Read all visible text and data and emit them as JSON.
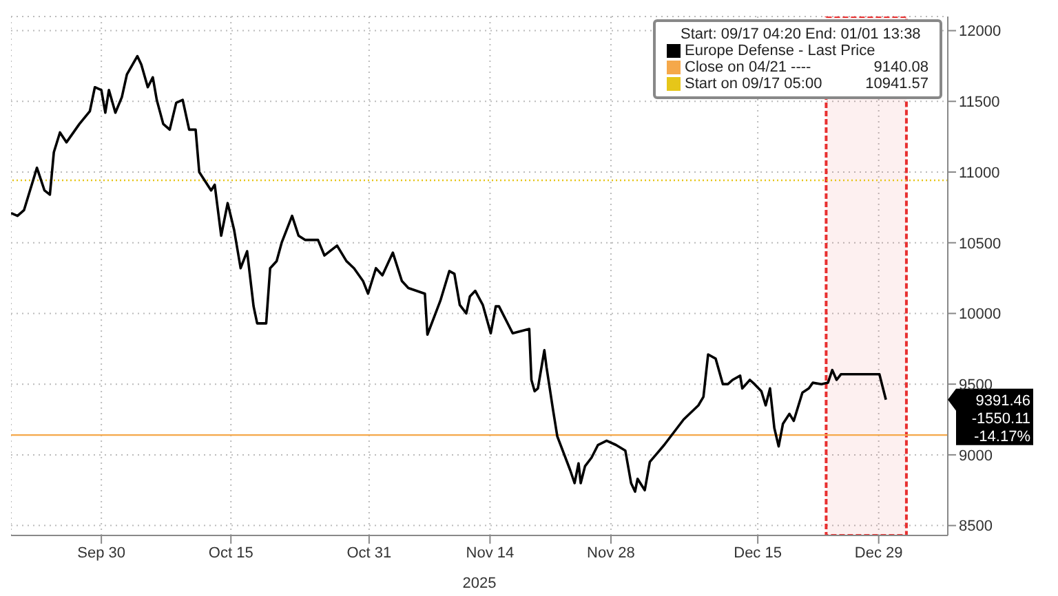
{
  "chart_data": {
    "type": "line",
    "xlabel": "2025",
    "legend_title": "Start: 09/17 04:20 End: 01/01 13:38",
    "legend": "top right",
    "grid": true,
    "marker": "none",
    "xlim": [
      "2025-09-19T13:00",
      "2026-01-06T00:00"
    ],
    "xticks": [
      {
        "value": "2025-09-30",
        "label": "Sep 30"
      },
      {
        "value": "2025-10-15",
        "label": "Oct 15"
      },
      {
        "value": "2025-10-31",
        "label": "Oct 31"
      },
      {
        "value": "2025-11-14",
        "label": "Nov 14"
      },
      {
        "value": "2025-11-28",
        "label": "Nov 28"
      },
      {
        "value": "2025-12-15",
        "label": "Dec 15"
      },
      {
        "value": "2025-12-29",
        "label": "Dec 29"
      }
    ],
    "ylim": [
      8430,
      12100
    ],
    "yticks": [
      8500,
      9000,
      9500,
      10000,
      10500,
      11000,
      11500,
      12000
    ],
    "series": [
      {
        "name": "Europe Defense - Last Price",
        "color": "#000000",
        "line_style": "solid",
        "x": [
          "2025-09-19T13:00",
          "2025-09-20T07:00",
          "2025-09-21T01:00",
          "2025-09-22T13:00",
          "2025-09-23T10:00",
          "2025-09-24T01:00",
          "2025-09-24T12:00",
          "2025-09-25T05:00",
          "2025-09-25T23:00",
          "2025-09-27T11:00",
          "2025-09-28T16:00",
          "2025-09-29T06:00",
          "2025-09-30T00:00",
          "2025-09-30T11:00",
          "2025-09-30T21:00",
          "2025-10-01T15:00",
          "2025-10-02T09:00",
          "2025-10-02T23:00",
          "2025-10-04T04:00",
          "2025-10-04T15:00",
          "2025-10-05T09:00",
          "2025-10-05T23:00",
          "2025-10-06T10:00",
          "2025-10-07T04:00",
          "2025-10-07T22:00",
          "2025-10-08T16:00",
          "2025-10-09T10:00",
          "2025-10-10T04:00",
          "2025-10-10T22:00",
          "2025-10-11T08:00",
          "2025-10-12T17:00",
          "2025-10-13T03:00",
          "2025-10-13T21:00",
          "2025-10-14T15:00",
          "2025-10-15T09:00",
          "2025-10-16T03:00",
          "2025-10-16T21:00",
          "2025-10-17T15:00",
          "2025-10-18T01:00",
          "2025-10-19T02:00",
          "2025-10-19T13:00",
          "2025-10-20T07:00",
          "2025-10-20T21:00",
          "2025-10-22T02:00",
          "2025-10-22T20:00",
          "2025-10-23T14:00",
          "2025-10-25T02:00",
          "2025-10-25T20:00",
          "2025-10-27T07:00",
          "2025-10-28T09:00",
          "2025-10-29T06:00",
          "2025-10-30T07:00",
          "2025-10-30T21:00",
          "2025-10-31T19:00",
          "2025-11-01T13:00",
          "2025-11-02T18:00",
          "2025-11-03T19:00",
          "2025-11-04T13:00",
          "2025-11-06T11:00",
          "2025-11-06T18:00",
          "2025-11-07T12:00",
          "2025-11-08T06:00",
          "2025-11-09T07:00",
          "2025-11-09T21:00",
          "2025-11-10T12:00",
          "2025-11-11T06:00",
          "2025-11-11T16:00",
          "2025-11-12T07:00",
          "2025-11-13T04:00",
          "2025-11-14T02:00",
          "2025-11-14T16:00",
          "2025-11-15T01:00",
          "2025-11-16T15:00",
          "2025-11-18T13:00",
          "2025-11-18T19:00",
          "2025-11-19T04:00",
          "2025-11-19T13:00",
          "2025-11-20T07:00",
          "2025-11-20T13:00",
          "2025-11-21T07:00",
          "2025-11-21T19:00",
          "2025-11-23T07:00",
          "2025-11-23T19:00",
          "2025-11-24T06:00",
          "2025-11-24T12:00",
          "2025-11-25T00:00",
          "2025-11-25T18:00",
          "2025-11-26T12:00",
          "2025-11-27T12:00",
          "2025-11-28T14:00",
          "2025-11-29T16:00",
          "2025-11-30T08:00",
          "2025-11-30T19:00",
          "2025-12-01T02:00",
          "2025-12-01T22:00",
          "2025-12-02T12:00",
          "2025-12-03T08:00",
          "2025-12-04T04:00",
          "2025-12-05T07:00",
          "2025-12-06T10:00",
          "2025-12-08T03:00",
          "2025-12-08T17:00",
          "2025-12-09T06:00",
          "2025-12-10T03:00",
          "2025-12-10T23:00",
          "2025-12-11T13:00",
          "2025-12-12T02:00",
          "2025-12-12T23:00",
          "2025-12-13T05:00",
          "2025-12-14T02:00",
          "2025-12-14T15:00",
          "2025-12-15T10:00",
          "2025-12-15T22:00",
          "2025-12-16T10:00",
          "2025-12-16T22:00",
          "2025-12-17T10:00",
          "2025-12-17T22:00",
          "2025-12-18T16:00",
          "2025-12-19T04:00",
          "2025-12-20T04:00",
          "2025-12-20T22:00",
          "2025-12-21T09:00",
          "2025-12-22T09:00",
          "2025-12-23T03:00",
          "2025-12-23T15:00",
          "2025-12-24T03:00",
          "2025-12-24T15:00",
          "2025-12-29T02:00",
          "2025-12-29T20:00"
        ],
        "values": [
          10710,
          10690,
          10730,
          11030,
          10870,
          10840,
          11140,
          11280,
          11210,
          11340,
          11430,
          11600,
          11580,
          11420,
          11580,
          11420,
          11530,
          11690,
          11820,
          11760,
          11600,
          11670,
          11510,
          11340,
          11300,
          11490,
          11510,
          11300,
          11300,
          11000,
          10870,
          10910,
          10550,
          10780,
          10590,
          10320,
          10440,
          10050,
          9930,
          9930,
          10320,
          10370,
          10500,
          10690,
          10550,
          10520,
          10520,
          10410,
          10480,
          10370,
          10320,
          10230,
          10140,
          10320,
          10270,
          10430,
          10230,
          10180,
          10140,
          9850,
          9970,
          10090,
          10300,
          10280,
          10060,
          10000,
          10120,
          10160,
          10060,
          9860,
          10050,
          10050,
          9860,
          9890,
          9530,
          9450,
          9470,
          9740,
          9620,
          9320,
          9130,
          8890,
          8800,
          8940,
          8800,
          8920,
          8980,
          9070,
          9100,
          9070,
          9030,
          8800,
          8740,
          8830,
          8750,
          8950,
          9010,
          9070,
          9160,
          9250,
          9350,
          9410,
          9710,
          9680,
          9500,
          9500,
          9530,
          9560,
          9470,
          9530,
          9500,
          9450,
          9350,
          9470,
          9190,
          9060,
          9220,
          9290,
          9240,
          9440,
          9470,
          9510,
          9500,
          9510,
          9600,
          9530,
          9570,
          9570,
          9390
        ]
      }
    ],
    "ref_lines": [
      {
        "axis": "y",
        "value": 9140.08,
        "label": "Close on 04/21 ---- 9140.08",
        "color": "#f5a84a",
        "line_style": "solid"
      },
      {
        "axis": "y",
        "value": 10941.57,
        "label": "Start on 09/17 05:00 10941.57",
        "color": "#e6c619",
        "line_style": "dotted"
      }
    ],
    "bands": [
      {
        "axis": "x",
        "from": "2025-12-22T22:00",
        "to": "2026-01-01T05:00",
        "color": "#e83030"
      }
    ],
    "annotations": [
      "9391.46\n-1550.11\n-14.17%"
    ]
  }
}
